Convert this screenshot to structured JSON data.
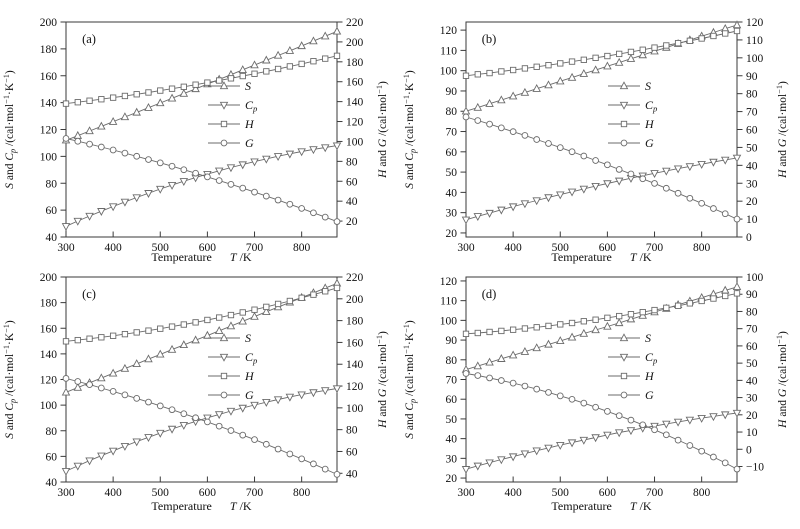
{
  "colors": {
    "background": "#ffffff",
    "curve": "#6b6b6b",
    "axis": "#3a3a3a",
    "text": "#111111",
    "marker_fill": "#ffffff"
  },
  "axis_labels": {
    "left_text": "S and Cp /(cal·mol−1·K−1)",
    "right_text": "H and G /(cal·mol−1)",
    "x_text": "Temperature   T /K",
    "left_parts": [
      {
        "t": "S",
        "i": true
      },
      {
        "t": " and "
      },
      {
        "t": "C",
        "i": true
      },
      {
        "t": "p",
        "i": true,
        "sub": true
      },
      {
        "t": " /(cal·mol"
      },
      {
        "t": "−1",
        "sup": true
      },
      {
        "t": "·K"
      },
      {
        "t": "−1",
        "sup": true
      },
      {
        "t": ")"
      }
    ],
    "right_parts": [
      {
        "t": "H",
        "i": true
      },
      {
        "t": " and "
      },
      {
        "t": "G",
        "i": true
      },
      {
        "t": " /(cal·mol"
      },
      {
        "t": "−1",
        "sup": true
      },
      {
        "t": ")"
      }
    ],
    "x_parts": [
      {
        "t": "Temperature"
      },
      {
        "t": "   "
      },
      {
        "t": "T",
        "i": true
      },
      {
        "t": " /K"
      }
    ]
  },
  "legend": {
    "items": [
      {
        "name": "S",
        "marker": "triangle-up",
        "label_parts": [
          {
            "t": "S",
            "i": true
          }
        ]
      },
      {
        "name": "Cp",
        "marker": "triangle-down",
        "label_parts": [
          {
            "t": "C",
            "i": true
          },
          {
            "t": "p",
            "i": true,
            "sub": true
          }
        ]
      },
      {
        "name": "H",
        "marker": "square",
        "label_parts": [
          {
            "t": "H",
            "i": true
          }
        ]
      },
      {
        "name": "G",
        "marker": "circle",
        "label_parts": [
          {
            "t": "G",
            "i": true
          }
        ]
      }
    ]
  },
  "chart_data": [
    {
      "type": "line",
      "id": "a",
      "panel_label": "(a)",
      "x": {
        "min": 300,
        "max": 875,
        "ticks": [
          300,
          400,
          500,
          600,
          700,
          800
        ],
        "values": [
          300,
          325,
          350,
          375,
          400,
          425,
          450,
          475,
          500,
          525,
          550,
          575,
          600,
          625,
          650,
          675,
          700,
          725,
          750,
          775,
          800,
          825,
          850,
          875
        ]
      },
      "left_axis": {
        "min": 40,
        "max": 200,
        "ticks": [
          40,
          60,
          80,
          100,
          120,
          140,
          160,
          180,
          200
        ]
      },
      "right_axis": {
        "min": 4,
        "max": 220,
        "ticks": [
          20,
          40,
          60,
          80,
          100,
          120,
          140,
          160,
          180,
          200,
          220
        ]
      },
      "series": [
        {
          "name": "S",
          "axis": "left",
          "marker": "triangle-up",
          "values": [
            112,
            115.4,
            118.9,
            122.3,
            125.8,
            129.3,
            132.7,
            136.2,
            139.7,
            143.2,
            146.7,
            150.2,
            153.8,
            157.3,
            160.8,
            164.4,
            167.9,
            171.5,
            175.1,
            178.6,
            182.2,
            185.8,
            189.4,
            193
          ]
        },
        {
          "name": "Cp",
          "axis": "left",
          "marker": "triangle-down",
          "values": [
            48,
            51.9,
            55.6,
            59.2,
            62.7,
            66.1,
            69.4,
            72.6,
            75.7,
            78.6,
            81.5,
            84.2,
            86.8,
            89.3,
            91.7,
            93.9,
            96.1,
            98.1,
            100.1,
            101.9,
            103.6,
            105.2,
            106.6,
            108
          ]
        },
        {
          "name": "H",
          "axis": "right",
          "marker": "square",
          "values": [
            138,
            139.4,
            140.9,
            142.4,
            144,
            145.7,
            147.4,
            149.2,
            151.1,
            153,
            154.9,
            157,
            159.1,
            161.2,
            163.4,
            165.7,
            168,
            170.4,
            172.8,
            175.4,
            177.9,
            180.6,
            183.2,
            186
          ]
        },
        {
          "name": "G",
          "axis": "right",
          "marker": "circle",
          "values": [
            103,
            100.2,
            97.3,
            94.4,
            91.4,
            88.3,
            85.1,
            81.8,
            78.5,
            75.1,
            71.6,
            68.1,
            64.4,
            60.7,
            56.9,
            53.1,
            49.1,
            45.1,
            41.1,
            36.9,
            32.7,
            28.3,
            24,
            19.5
          ]
        }
      ]
    },
    {
      "type": "line",
      "id": "b",
      "panel_label": "(b)",
      "x": {
        "min": 300,
        "max": 875,
        "ticks": [
          300,
          400,
          500,
          600,
          700,
          800
        ],
        "values": [
          300,
          325,
          350,
          375,
          400,
          425,
          450,
          475,
          500,
          525,
          550,
          575,
          600,
          625,
          650,
          675,
          700,
          725,
          750,
          775,
          800,
          825,
          850,
          875
        ]
      },
      "left_axis": {
        "min": 18,
        "max": 124,
        "ticks": [
          20,
          30,
          40,
          50,
          60,
          70,
          80,
          90,
          100,
          110,
          120
        ]
      },
      "right_axis": {
        "min": 0,
        "max": 120,
        "ticks": [
          0,
          10,
          20,
          30,
          40,
          50,
          60,
          70,
          80,
          90,
          100,
          110,
          120
        ]
      },
      "series": [
        {
          "name": "S",
          "axis": "left",
          "marker": "triangle-up",
          "values": [
            80,
            81.8,
            83.7,
            85.5,
            87.4,
            89.2,
            91.1,
            92.9,
            94.8,
            96.6,
            98.5,
            100.3,
            102.2,
            104,
            105.9,
            107.7,
            109.6,
            111.4,
            113.3,
            115.1,
            117,
            118.8,
            120.7,
            122.5
          ]
        },
        {
          "name": "Cp",
          "axis": "left",
          "marker": "triangle-down",
          "values": [
            26.5,
            28.2,
            29.8,
            31.4,
            33,
            34.5,
            36,
            37.5,
            38.9,
            40.3,
            41.7,
            43.1,
            44.4,
            45.7,
            47,
            48.2,
            49.4,
            50.6,
            51.7,
            52.8,
            53.9,
            55,
            56,
            57
          ]
        },
        {
          "name": "H",
          "axis": "right",
          "marker": "square",
          "values": [
            90,
            90.8,
            91.5,
            92.4,
            93.2,
            94.1,
            95,
            95.9,
            96.9,
            97.9,
            98.9,
            100,
            101,
            102.2,
            103.3,
            104.5,
            105.7,
            106.9,
            108.2,
            109.5,
            110.8,
            112.2,
            113.6,
            115
          ]
        },
        {
          "name": "G",
          "axis": "right",
          "marker": "circle",
          "values": [
            67,
            65,
            63,
            60.9,
            58.8,
            56.7,
            54.4,
            52.2,
            49.9,
            47.6,
            45.2,
            42.7,
            40.3,
            37.7,
            35.2,
            32.5,
            29.9,
            27.2,
            24.4,
            21.6,
            18.8,
            15.9,
            13,
            10
          ]
        }
      ]
    },
    {
      "type": "line",
      "id": "c",
      "panel_label": "(c)",
      "x": {
        "min": 300,
        "max": 875,
        "ticks": [
          300,
          400,
          500,
          600,
          700,
          800
        ],
        "values": [
          300,
          325,
          350,
          375,
          400,
          425,
          450,
          475,
          500,
          525,
          550,
          575,
          600,
          625,
          650,
          675,
          700,
          725,
          750,
          775,
          800,
          825,
          850,
          875
        ]
      },
      "left_axis": {
        "min": 40,
        "max": 200,
        "ticks": [
          40,
          60,
          80,
          100,
          120,
          140,
          160,
          180,
          200
        ]
      },
      "right_axis": {
        "min": 32,
        "max": 220,
        "ticks": [
          40,
          60,
          80,
          100,
          120,
          140,
          160,
          180,
          200,
          220
        ]
      },
      "series": [
        {
          "name": "S",
          "axis": "left",
          "marker": "triangle-up",
          "values": [
            110,
            113.7,
            117.4,
            121.1,
            124.8,
            128.5,
            132.2,
            135.9,
            139.6,
            143.3,
            147,
            150.7,
            154.3,
            158,
            161.7,
            165.4,
            169.1,
            172.8,
            176.5,
            180.2,
            183.9,
            187.6,
            191.3,
            195
          ]
        },
        {
          "name": "Cp",
          "axis": "left",
          "marker": "triangle-down",
          "values": [
            48.5,
            52.6,
            56.7,
            60.5,
            64.3,
            68,
            71.5,
            74.9,
            78.2,
            81.4,
            84.4,
            87.3,
            90.1,
            92.8,
            95.4,
            97.8,
            100.1,
            102.3,
            104.4,
            106.4,
            108.2,
            109.9,
            111.5,
            113
          ]
        },
        {
          "name": "H",
          "axis": "right",
          "marker": "square",
          "values": [
            161,
            162.1,
            163.4,
            164.7,
            166.1,
            167.6,
            169.2,
            170.8,
            172.6,
            174.5,
            176.4,
            178.4,
            180.6,
            182.8,
            185.1,
            187.5,
            190,
            192.6,
            195.3,
            198,
            200.9,
            203.8,
            206.9,
            210
          ]
        },
        {
          "name": "G",
          "axis": "right",
          "marker": "circle",
          "values": [
            127,
            124.2,
            121.3,
            118.2,
            115.1,
            111.9,
            108.7,
            105.3,
            101.8,
            98.3,
            94.6,
            90.9,
            87.1,
            83.2,
            79.2,
            75,
            70.9,
            66.6,
            62.2,
            57.7,
            53.2,
            48.6,
            43.8,
            39
          ]
        }
      ]
    },
    {
      "type": "line",
      "id": "d",
      "panel_label": "(d)",
      "x": {
        "min": 300,
        "max": 875,
        "ticks": [
          300,
          400,
          500,
          600,
          700,
          800
        ],
        "values": [
          300,
          325,
          350,
          375,
          400,
          425,
          450,
          475,
          500,
          525,
          550,
          575,
          600,
          625,
          650,
          675,
          700,
          725,
          750,
          775,
          800,
          825,
          850,
          875
        ]
      },
      "left_axis": {
        "min": 18,
        "max": 122,
        "ticks": [
          20,
          30,
          40,
          50,
          60,
          70,
          80,
          90,
          100,
          110,
          120
        ]
      },
      "right_axis": {
        "min": -19,
        "max": 100,
        "ticks": [
          -10,
          0,
          10,
          20,
          30,
          40,
          50,
          60,
          70,
          80,
          90,
          100
        ]
      },
      "series": [
        {
          "name": "S",
          "axis": "left",
          "marker": "triangle-up",
          "values": [
            75,
            76.8,
            78.7,
            80.5,
            82.3,
            84.1,
            86,
            87.8,
            89.6,
            91.4,
            93.3,
            95.1,
            96.9,
            98.7,
            100.6,
            102.4,
            104.2,
            106,
            107.9,
            109.7,
            111.5,
            113.3,
            115.2,
            117
          ]
        },
        {
          "name": "Cp",
          "axis": "left",
          "marker": "triangle-down",
          "values": [
            24.5,
            26.2,
            27.8,
            29.4,
            30.9,
            32.4,
            33.9,
            35.3,
            36.7,
            38,
            39.3,
            40.6,
            41.9,
            43.1,
            44.2,
            45.4,
            46.4,
            47.5,
            48.5,
            49.5,
            50.4,
            51.3,
            52.2,
            53
          ]
        },
        {
          "name": "H",
          "axis": "right",
          "marker": "square",
          "values": [
            67,
            67.5,
            68.1,
            68.7,
            69.4,
            70.1,
            70.8,
            71.6,
            72.5,
            73.3,
            74.3,
            75.2,
            76.3,
            77.3,
            78.4,
            79.6,
            80.8,
            82.1,
            83.3,
            84.7,
            86.1,
            87.5,
            89,
            90.5
          ]
        },
        {
          "name": "G",
          "axis": "right",
          "marker": "circle",
          "values": [
            44,
            42.8,
            41.4,
            39.9,
            38.4,
            36.7,
            34.9,
            33,
            31,
            29,
            26.8,
            24.4,
            22,
            19.5,
            16.9,
            14.2,
            11.3,
            8.4,
            5.3,
            2.2,
            -1.1,
            -4.5,
            -7.9,
            -11.5
          ]
        }
      ]
    }
  ]
}
